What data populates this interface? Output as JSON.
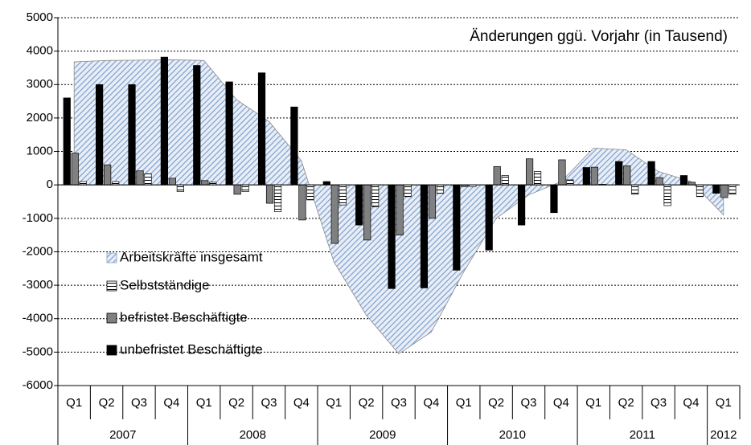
{
  "chart_data": {
    "type": "bar",
    "annotation": "Änderungen ggü. Vorjahr (in Tausend)",
    "categories": [
      "Q1",
      "Q2",
      "Q3",
      "Q4",
      "Q1",
      "Q2",
      "Q3",
      "Q4",
      "Q1",
      "Q2",
      "Q3",
      "Q4",
      "Q1",
      "Q2",
      "Q3",
      "Q4",
      "Q1",
      "Q2",
      "Q3",
      "Q4",
      "Q1"
    ],
    "years": [
      "2007",
      null,
      null,
      null,
      "2008",
      null,
      null,
      null,
      "2009",
      null,
      null,
      null,
      "2010",
      null,
      null,
      null,
      "2011",
      null,
      null,
      null,
      "2012"
    ],
    "series": [
      {
        "name": "Arbeitskräfte insgesamt",
        "type": "area",
        "color": "#7f9fca",
        "values": [
          3680,
          3720,
          3730,
          3740,
          3720,
          2550,
          1900,
          720,
          -2300,
          -3900,
          -5050,
          -4400,
          -2600,
          -1000,
          -300,
          100,
          1100,
          1050,
          400,
          100,
          -900
        ]
      },
      {
        "name": "Selbstständige",
        "type": "bar",
        "color": "#ffffff",
        "values": [
          100,
          100,
          330,
          -200,
          80,
          -200,
          -800,
          -450,
          -600,
          -650,
          -350,
          -250,
          -50,
          280,
          400,
          150,
          20,
          -280,
          -620,
          -350,
          -280
        ]
      },
      {
        "name": "befristet Beschäftigte",
        "type": "bar",
        "color": "#808080",
        "values": [
          950,
          600,
          420,
          200,
          130,
          -280,
          -550,
          -1050,
          -1750,
          -1650,
          -1500,
          -1000,
          -50,
          550,
          780,
          750,
          530,
          570,
          220,
          80,
          -380
        ]
      },
      {
        "name": "unbefristet Beschäftigte",
        "type": "bar",
        "color": "#000000",
        "values": [
          2600,
          3000,
          3000,
          3820,
          3570,
          3080,
          3350,
          2330,
          100,
          -1200,
          -3100,
          -3080,
          -2550,
          -1950,
          -1200,
          -830,
          520,
          700,
          700,
          280,
          -250
        ]
      }
    ],
    "ylim": [
      -6000,
      5000
    ],
    "yticks": [
      -6000,
      -5000,
      -4000,
      -3000,
      -2000,
      -1000,
      0,
      1000,
      2000,
      3000,
      4000,
      5000
    ],
    "grid": true
  }
}
